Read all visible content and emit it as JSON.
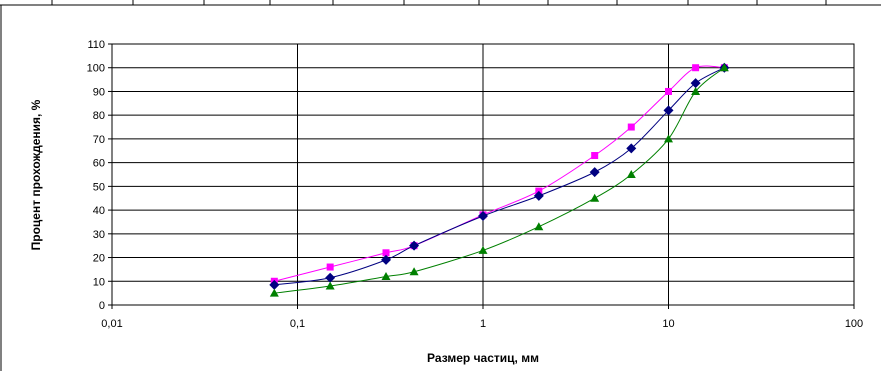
{
  "chart_data": {
    "type": "scatter",
    "title": "",
    "xlabel": "Размер частиц, мм",
    "ylabel": "Процент прохождения, %",
    "x_scale": "log",
    "xlim": [
      0.01,
      100
    ],
    "ylim": [
      0,
      110
    ],
    "x_ticks": [
      {
        "value": 0.01,
        "label": "0,01"
      },
      {
        "value": 0.1,
        "label": "0,1"
      },
      {
        "value": 1,
        "label": "1"
      },
      {
        "value": 10,
        "label": "10"
      },
      {
        "value": 100,
        "label": "100"
      }
    ],
    "y_ticks": [
      {
        "value": 0,
        "label": "0"
      },
      {
        "value": 10,
        "label": "10"
      },
      {
        "value": 20,
        "label": "20"
      },
      {
        "value": 30,
        "label": "30"
      },
      {
        "value": 40,
        "label": "40"
      },
      {
        "value": 50,
        "label": "50"
      },
      {
        "value": 60,
        "label": "60"
      },
      {
        "value": 70,
        "label": "70"
      },
      {
        "value": 80,
        "label": "80"
      },
      {
        "value": 90,
        "label": "90"
      },
      {
        "value": 100,
        "label": "100"
      },
      {
        "value": 110,
        "label": "110"
      }
    ],
    "grid": true,
    "legend": "none",
    "series": [
      {
        "color": "#ff00ff",
        "marker": "square",
        "x": [
          0.075,
          0.15,
          0.3,
          0.425,
          1,
          2,
          4,
          6.3,
          10,
          14,
          20
        ],
        "y": [
          10,
          16,
          22,
          25,
          38,
          48,
          63,
          75,
          90,
          100,
          100
        ]
      },
      {
        "color": "#000080",
        "marker": "diamond",
        "x": [
          0.075,
          0.15,
          0.3,
          0.425,
          1,
          2,
          4,
          6.3,
          10,
          14,
          20
        ],
        "y": [
          8.5,
          11.5,
          19,
          25,
          37.5,
          46,
          56,
          66,
          82,
          93.5,
          100
        ]
      },
      {
        "color": "#008000",
        "marker": "triangle",
        "x": [
          0.075,
          0.15,
          0.3,
          0.425,
          1,
          2,
          4,
          6.3,
          10,
          14,
          20
        ],
        "y": [
          5,
          8,
          12,
          14,
          23,
          33,
          45,
          55,
          70,
          90,
          100
        ]
      }
    ]
  }
}
